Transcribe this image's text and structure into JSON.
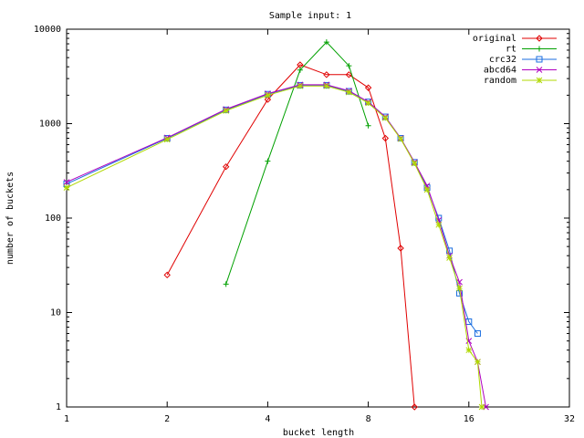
{
  "chart_data": {
    "type": "line",
    "title": "Sample input: 1",
    "xlabel": "bucket length",
    "ylabel": "number of buckets",
    "x_scale": "log2",
    "y_scale": "log10",
    "xlim": [
      1,
      32
    ],
    "ylim": [
      1,
      10000
    ],
    "x_ticks": [
      "1",
      "2",
      "4",
      "8",
      "16",
      "32"
    ],
    "y_ticks": [
      "1",
      "10",
      "100",
      "1000",
      "10000"
    ],
    "grid": false,
    "legend_position": "top-right",
    "series": [
      {
        "name": "original",
        "color": "#e00000",
        "marker": "diamond",
        "x": [
          2,
          3,
          4,
          5,
          6,
          7,
          8,
          9,
          10,
          11
        ],
        "y": [
          25,
          350,
          1800,
          4200,
          3300,
          3300,
          2400,
          700,
          48,
          1
        ]
      },
      {
        "name": "rt",
        "color": "#00a000",
        "marker": "plus",
        "x": [
          3,
          4,
          5,
          6,
          7,
          8
        ],
        "y": [
          20,
          400,
          3700,
          7300,
          4100,
          950
        ]
      },
      {
        "name": "crc32",
        "color": "#1a6ee0",
        "marker": "square",
        "x": [
          1,
          2,
          3,
          4,
          5,
          6,
          7,
          8,
          9,
          10,
          11,
          12,
          13,
          14,
          15,
          16,
          17
        ],
        "y": [
          230,
          700,
          1400,
          2050,
          2550,
          2550,
          2200,
          1700,
          1180,
          700,
          390,
          210,
          100,
          45,
          16,
          8,
          6
        ]
      },
      {
        "name": "abcd64",
        "color": "#b000c0",
        "marker": "x",
        "x": [
          1,
          2,
          3,
          4,
          5,
          6,
          7,
          8,
          9,
          10,
          11,
          12,
          13,
          14,
          15,
          16,
          17,
          18
        ],
        "y": [
          240,
          710,
          1420,
          2080,
          2580,
          2580,
          2230,
          1700,
          1180,
          700,
          390,
          220,
          95,
          40,
          21,
          5,
          3,
          1
        ]
      },
      {
        "name": "random",
        "color": "#b0d800",
        "marker": "star",
        "x": [
          1,
          2,
          3,
          4,
          5,
          6,
          7,
          8,
          9,
          10,
          11,
          12,
          13,
          14,
          15,
          16,
          17,
          17.5
        ],
        "y": [
          210,
          680,
          1370,
          2000,
          2500,
          2500,
          2150,
          1650,
          1150,
          690,
          380,
          200,
          85,
          38,
          18,
          4,
          3,
          1
        ]
      }
    ]
  }
}
